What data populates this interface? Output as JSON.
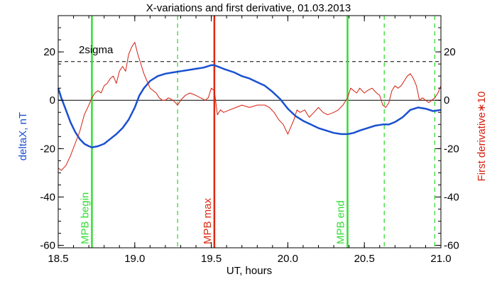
{
  "chart_data": {
    "type": "line",
    "title": "X-variations and first derivative, 01.03.2013",
    "xlabel": "UT, hours",
    "ylabel_left": "deltaX, nT",
    "ylabel_right": "First derivative∗10",
    "xlim": [
      18.5,
      21.0
    ],
    "ylim_left": [
      -61,
      35
    ],
    "ylim_right": [
      -61,
      35
    ],
    "x_ticks": [
      18.5,
      19.0,
      19.5,
      20.0,
      20.5,
      21.0
    ],
    "x_tick_labels": [
      "18.5",
      "19.0",
      "19.5",
      "20.0",
      "20.5",
      "21.0"
    ],
    "y_ticks": [
      -60,
      -40,
      -20,
      0,
      20
    ],
    "y_tick_labels_left": [
      "-60",
      "-40",
      "-20",
      "0",
      "20"
    ],
    "y_tick_labels_right": [
      "-60",
      "-40",
      "-20",
      "0",
      "20"
    ],
    "colors": {
      "deltaX": "#1a50d0",
      "derivative": "#d42010",
      "mpb": "#33dd33",
      "mpb_max": "#dd2a10",
      "axes": "#000000",
      "left_label": "#1a50d0",
      "right_label": "#d42010"
    },
    "sigma": {
      "label": "2sigma",
      "value": 16
    },
    "zero_line": 0,
    "vertical_lines": [
      {
        "x": 18.72,
        "label": "MPB begin",
        "style": "solid",
        "color": "#33dd33"
      },
      {
        "x": 19.28,
        "label": "",
        "style": "dashed",
        "color": "#33dd33"
      },
      {
        "x": 19.52,
        "label": "MPB max",
        "style": "solid",
        "color": "#dd2a10"
      },
      {
        "x": 20.39,
        "label": "MPB end",
        "style": "solid",
        "color": "#33dd33"
      },
      {
        "x": 20.63,
        "label": "",
        "style": "dashed",
        "color": "#33dd33"
      },
      {
        "x": 20.96,
        "label": "",
        "style": "dashed",
        "color": "#33dd33"
      }
    ],
    "series": [
      {
        "name": "deltaX, nT",
        "axis": "left",
        "x": [
          18.5,
          18.52,
          18.55,
          18.58,
          18.61,
          18.64,
          18.67,
          18.7,
          18.72,
          18.76,
          18.8,
          18.84,
          18.88,
          18.92,
          18.96,
          19.0,
          19.03,
          19.06,
          19.1,
          19.15,
          19.2,
          19.25,
          19.3,
          19.35,
          19.4,
          19.45,
          19.5,
          19.52,
          19.58,
          19.65,
          19.7,
          19.75,
          19.8,
          19.85,
          19.9,
          19.95,
          20.0,
          20.05,
          20.1,
          20.15,
          20.2,
          20.25,
          20.3,
          20.35,
          20.39,
          20.43,
          20.47,
          20.52,
          20.57,
          20.62,
          20.66,
          20.7,
          20.75,
          20.8,
          20.85,
          20.9,
          20.95,
          21.0
        ],
        "values": [
          5,
          1,
          -4,
          -9,
          -13,
          -16,
          -18,
          -19,
          -19.5,
          -19,
          -18,
          -16,
          -14,
          -11.5,
          -8,
          -3,
          2,
          5,
          8,
          10,
          11,
          11.5,
          12,
          12.5,
          13,
          13.5,
          14.5,
          14.5,
          13,
          11.5,
          10,
          9,
          7.5,
          6,
          3.5,
          0.5,
          -3.5,
          -6.5,
          -8.5,
          -10,
          -11.5,
          -12.5,
          -13.5,
          -14,
          -14,
          -13.5,
          -12.5,
          -11.5,
          -10.5,
          -10,
          -10,
          -9,
          -7,
          -4,
          -3,
          -3.5,
          -4.5,
          -4
        ]
      },
      {
        "name": "First derivative∗10",
        "axis": "right",
        "x": [
          18.5,
          18.52,
          18.55,
          18.58,
          18.61,
          18.64,
          18.67,
          18.7,
          18.72,
          18.74,
          18.76,
          18.78,
          18.8,
          18.82,
          18.84,
          18.86,
          18.88,
          18.9,
          18.92,
          18.94,
          18.96,
          18.98,
          19.0,
          19.02,
          19.04,
          19.06,
          19.08,
          19.1,
          19.12,
          19.14,
          19.16,
          19.18,
          19.2,
          19.22,
          19.25,
          19.28,
          19.3,
          19.33,
          19.36,
          19.4,
          19.43,
          19.46,
          19.48,
          19.5,
          19.52,
          19.54,
          19.56,
          19.58,
          19.62,
          19.66,
          19.7,
          19.75,
          19.8,
          19.85,
          19.88,
          19.91,
          19.94,
          19.97,
          20.0,
          20.02,
          20.04,
          20.06,
          20.08,
          20.11,
          20.14,
          20.17,
          20.2,
          20.23,
          20.26,
          20.3,
          20.33,
          20.36,
          20.39,
          20.41,
          20.43,
          20.45,
          20.47,
          20.5,
          20.52,
          20.55,
          20.58,
          20.6,
          20.62,
          20.64,
          20.66,
          20.68,
          20.7,
          20.72,
          20.74,
          20.76,
          20.78,
          20.8,
          20.82,
          20.84,
          20.86,
          20.88,
          20.9,
          20.92,
          20.94,
          20.96,
          20.98,
          21.0
        ],
        "values": [
          -28,
          -29,
          -27,
          -23,
          -18,
          -13,
          -6,
          -2,
          1,
          3,
          4,
          3,
          6,
          7,
          9,
          10,
          7,
          12,
          14,
          12,
          19,
          22,
          24,
          19,
          15,
          11,
          8,
          5,
          4,
          3,
          1,
          0,
          0,
          1,
          0,
          -2,
          0,
          2,
          3,
          2,
          1,
          0,
          1,
          5,
          4,
          -6,
          -4,
          -5,
          -4,
          -3,
          -2,
          -3,
          -2,
          -2,
          -3,
          -5,
          -8,
          -10,
          -14,
          -11,
          -8,
          -4,
          -5,
          -4,
          -7,
          -5,
          -3,
          -5,
          -6,
          -5,
          -4,
          -2,
          1,
          5,
          4,
          3,
          5,
          3,
          4,
          5,
          3,
          2,
          -2,
          -3,
          -1,
          4,
          6,
          5,
          6,
          8,
          10,
          11,
          9,
          6,
          0,
          1,
          0,
          -1,
          0,
          1,
          3,
          6
        ]
      }
    ]
  }
}
